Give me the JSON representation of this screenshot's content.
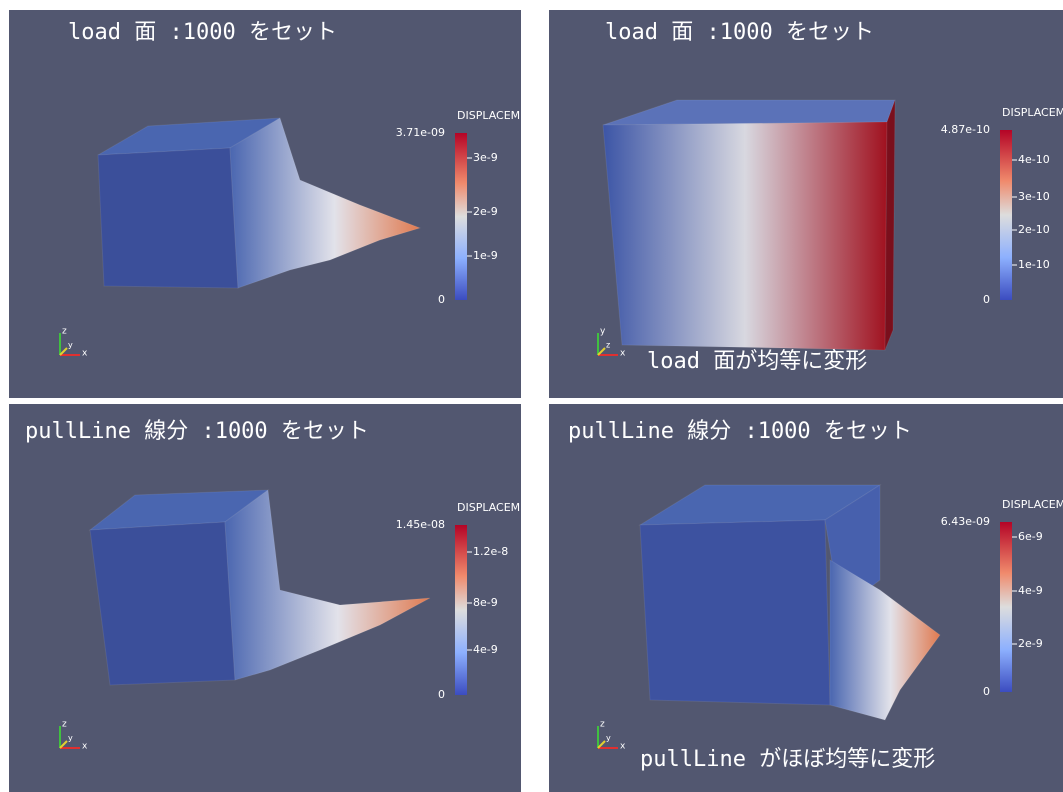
{
  "panels": [
    {
      "title": "load 面 :1000 をセット",
      "colorbar": {
        "title": "DISPLACEMENT",
        "max": "3.71e-09",
        "ticks": [
          "3e-9",
          "2e-9",
          "1e-9"
        ],
        "min": "0"
      },
      "axes": [
        "z",
        "y",
        "x"
      ]
    },
    {
      "title": "load 面 :1000 をセット",
      "note": "load 面が均等に変形",
      "colorbar": {
        "title": "DISPLACEMENT",
        "max": "4.87e-10",
        "ticks": [
          "4e-10",
          "3e-10",
          "2e-10",
          "1e-10"
        ],
        "min": "0"
      },
      "axes": [
        "y",
        "z",
        "x"
      ]
    },
    {
      "title": "pullLine 線分 :1000 をセット",
      "colorbar": {
        "title": "DISPLACEMENT",
        "max": "1.45e-08",
        "ticks": [
          "1.2e-8",
          "8e-9",
          "4e-9"
        ],
        "min": "0"
      },
      "axes": [
        "z",
        "y",
        "x"
      ]
    },
    {
      "title": "pullLine 線分 :1000 をセット",
      "note": "pullLine がほぼ均等に変形",
      "colorbar": {
        "title": "DISPLACEMENT",
        "max": "6.43e-09",
        "ticks": [
          "6e-9",
          "4e-9",
          "2e-9"
        ],
        "min": "0"
      },
      "axes": [
        "z",
        "y",
        "x"
      ]
    }
  ]
}
